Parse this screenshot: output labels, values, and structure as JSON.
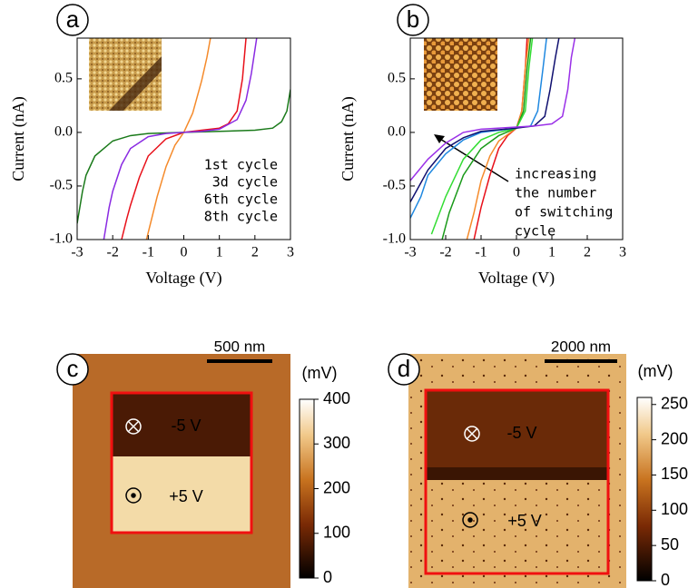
{
  "chart_data": [
    {
      "type": "line",
      "label": "a",
      "xlabel": "Voltage (V)",
      "ylabel": "Current (nA)",
      "xlim": [
        -3,
        3
      ],
      "xticks": [
        -3,
        -2,
        -1,
        0,
        1,
        2,
        3
      ],
      "ylim": [
        -1.0,
        0.88
      ],
      "yticks": [
        {
          "value": -1,
          "label": "-1.0"
        },
        -0.5,
        {
          "value": 0,
          "label": "0.0"
        },
        0.5
      ],
      "legend": "right",
      "series": [
        {
          "name": "1st cycle",
          "color": "#e8101a",
          "x": [
            -1.75,
            -1.6,
            -1.5,
            -1.25,
            -1,
            -0.5,
            0,
            0.5,
            1,
            1.25,
            1.5,
            1.65,
            1.75
          ],
          "values": [
            -1.0,
            -0.8,
            -0.68,
            -0.42,
            -0.22,
            -0.06,
            0,
            0.02,
            0.04,
            0.08,
            0.2,
            0.5,
            0.88
          ]
        },
        {
          "name": "3d cycle",
          "color": "#f58a2a",
          "x": [
            -1.05,
            -0.9,
            -0.75,
            -0.5,
            -0.25,
            0,
            0.25,
            0.5,
            0.65,
            0.75
          ],
          "values": [
            -1.0,
            -0.8,
            -0.6,
            -0.32,
            -0.12,
            0,
            0.18,
            0.48,
            0.7,
            0.88
          ]
        },
        {
          "name": "6th cycle",
          "color": "#1a7a1a",
          "x": [
            -3,
            -2.85,
            -2.75,
            -2.5,
            -2,
            -1.5,
            -1,
            0,
            1,
            2,
            2.5,
            2.75,
            2.9,
            3
          ],
          "values": [
            -0.85,
            -0.55,
            -0.4,
            -0.22,
            -0.08,
            -0.03,
            -0.01,
            0,
            0.01,
            0.02,
            0.04,
            0.1,
            0.2,
            0.4
          ]
        },
        {
          "name": "8th cycle",
          "color": "#8a2be2",
          "x": [
            -2.25,
            -2.1,
            -2,
            -1.75,
            -1.5,
            -1,
            -0.5,
            0,
            0.5,
            1,
            1.5,
            1.75,
            1.9,
            2.05
          ],
          "values": [
            -1.0,
            -0.7,
            -0.55,
            -0.3,
            -0.15,
            -0.04,
            -0.01,
            0,
            0.01,
            0.03,
            0.12,
            0.3,
            0.55,
            0.88
          ]
        }
      ]
    },
    {
      "type": "line",
      "label": "b",
      "xlabel": "Voltage (V)",
      "ylabel": "Current (nA)",
      "xlim": [
        -3,
        3
      ],
      "xticks": [
        -3,
        -2,
        -1,
        0,
        1,
        2,
        3
      ],
      "ylim": [
        -1.0,
        0.88
      ],
      "yticks": [
        {
          "value": -1,
          "label": "-1.0"
        },
        -0.5,
        {
          "value": 0,
          "label": "0.0"
        },
        0.5
      ],
      "annotation": [
        "increasing",
        "the number",
        "of switching",
        "cycle"
      ],
      "series": [
        {
          "color": "#e8101a",
          "x": [
            -1.2,
            -1,
            -0.75,
            -0.5,
            -0.25,
            0,
            0.15,
            0.25,
            0.3
          ],
          "values": [
            -1.0,
            -0.7,
            -0.4,
            -0.15,
            -0.03,
            0.04,
            0.2,
            0.6,
            0.88
          ]
        },
        {
          "color": "#f58a2a",
          "x": [
            -1.4,
            -1.2,
            -1,
            -0.75,
            -0.5,
            0,
            0.15,
            0.25,
            0.35
          ],
          "values": [
            -1.0,
            -0.75,
            -0.45,
            -0.22,
            -0.08,
            0.04,
            0.2,
            0.6,
            0.88
          ]
        },
        {
          "color": "#1a9a1a",
          "x": [
            -2.1,
            -1.9,
            -1.5,
            -1,
            -0.5,
            0,
            0.2,
            0.3,
            0.4
          ],
          "values": [
            -1.0,
            -0.75,
            -0.4,
            -0.15,
            -0.03,
            0.04,
            0.2,
            0.6,
            0.88
          ]
        },
        {
          "color": "#33dd33",
          "x": [
            -2.4,
            -2,
            -1.5,
            -1,
            -0.5,
            0,
            0.25,
            0.35,
            0.45
          ],
          "values": [
            -0.95,
            -0.6,
            -0.25,
            -0.07,
            0,
            0.04,
            0.2,
            0.6,
            0.88
          ]
        },
        {
          "color": "#1f88e0",
          "x": [
            -3,
            -2.7,
            -2.5,
            -2,
            -1.5,
            -1,
            0,
            0.4,
            0.6,
            0.75,
            0.85
          ],
          "values": [
            -0.8,
            -0.6,
            -0.4,
            -0.2,
            -0.07,
            0,
            0.04,
            0.06,
            0.2,
            0.6,
            0.88
          ]
        },
        {
          "color": "#101070",
          "x": [
            -3,
            -2.75,
            -2.5,
            -2,
            -1.5,
            -1,
            0,
            0.5,
            0.8,
            0.95,
            1.1,
            1.2
          ],
          "values": [
            -0.65,
            -0.5,
            -0.35,
            -0.15,
            -0.05,
            0.01,
            0.04,
            0.06,
            0.15,
            0.4,
            0.7,
            0.88
          ]
        },
        {
          "color": "#9a30e8",
          "x": [
            -3,
            -2.75,
            -2.5,
            -2,
            -1.5,
            -1,
            0,
            0.5,
            1,
            1.3,
            1.45,
            1.55,
            1.65
          ],
          "values": [
            -0.45,
            -0.35,
            -0.25,
            -0.1,
            0.0,
            0.03,
            0.05,
            0.06,
            0.08,
            0.15,
            0.4,
            0.7,
            0.88
          ]
        }
      ]
    },
    {
      "type": "image",
      "label": "c",
      "scalebar": "500 nm",
      "colorbar_label": "(mV)",
      "clim": [
        0,
        400
      ],
      "cticks": [
        0,
        100,
        200,
        300,
        400
      ],
      "annotations": [
        "-5 V",
        "+5 V"
      ]
    },
    {
      "type": "image",
      "label": "d",
      "scalebar": "2000 nm",
      "colorbar_label": "(mV)",
      "clim": [
        0,
        260
      ],
      "cticks": [
        0,
        50,
        100,
        150,
        200,
        250
      ],
      "annotations": [
        "-5 V",
        "+5 V"
      ]
    }
  ]
}
